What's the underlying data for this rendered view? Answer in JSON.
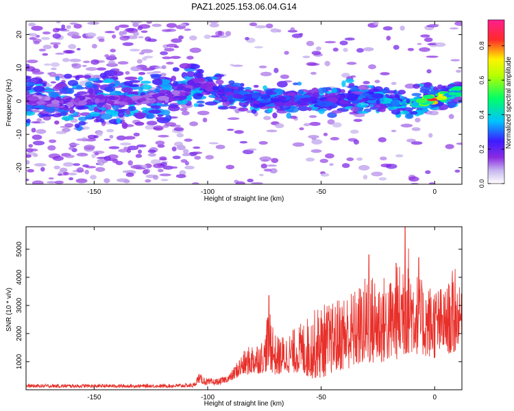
{
  "figure": {
    "title": "PAZ1.2025.153.06.04.G14"
  },
  "colors": {
    "background": "#ffffff",
    "axis": "#000000",
    "snr_line": "#e8302a",
    "colormap": [
      "#ffffff",
      "#c7b6ee",
      "#8a2be2",
      "#3c1cff",
      "#00c3ff",
      "#00ff66",
      "#fff200",
      "#ff2a2a",
      "#ff1f8f"
    ]
  },
  "chart_data": [
    {
      "type": "heatmap",
      "title": "PAZ1.2025.153.06.04.G14",
      "xlabel": "Height of straight line (km)",
      "ylabel": "Frequency (Hz)",
      "xlim": [
        -180,
        12
      ],
      "ylim": [
        -25,
        24
      ],
      "xticks": [
        -150,
        -100,
        -50,
        0
      ],
      "yticks": [
        -20,
        -10,
        0,
        10,
        20
      ],
      "grid": false,
      "colorbar": {
        "label": "Normalized spectral amplitude",
        "range": [
          0,
          0.95
        ],
        "ticks": [
          0.0,
          0.2,
          0.4,
          0.6,
          0.8
        ]
      },
      "ridge": {
        "x": [
          -178,
          -165,
          -150,
          -140,
          -130,
          -120,
          -110,
          -106,
          -100,
          -90,
          -80,
          -70,
          -60,
          -50,
          -40,
          -30,
          -20,
          -15,
          -10,
          -5,
          0,
          5,
          10
        ],
        "freq": [
          0.5,
          -0.5,
          0.8,
          0.3,
          0.5,
          1.0,
          2.0,
          6.0,
          4.5,
          2.0,
          1.0,
          0.0,
          0.5,
          -0.5,
          0.5,
          1.5,
          0.0,
          -1.0,
          -0.5,
          0.0,
          0.8,
          1.5,
          3.0
        ],
        "amplitude": [
          0.15,
          0.2,
          0.18,
          0.2,
          0.2,
          0.18,
          0.2,
          0.2,
          0.25,
          0.3,
          0.32,
          0.32,
          0.3,
          0.28,
          0.28,
          0.32,
          0.4,
          0.45,
          0.45,
          0.55,
          0.9,
          0.6,
          0.5
        ]
      }
    },
    {
      "type": "line",
      "xlabel": "Height of straight line (km)",
      "ylabel": "SNR (10 * v/v)",
      "xlim": [
        -180,
        12
      ],
      "ylim": [
        0,
        5800
      ],
      "xticks": [
        -150,
        -100,
        -50,
        0
      ],
      "yticks": [
        1000,
        2000,
        3000,
        4000,
        5000
      ],
      "grid": false,
      "series": [
        {
          "envelope_x": [
            -180,
            -150,
            -120,
            -106,
            -104,
            -100,
            -95,
            -90,
            -85,
            -80,
            -75,
            -73,
            -70,
            -65,
            -60,
            -55,
            -50,
            -45,
            -40,
            -35,
            -30,
            -25,
            -20,
            -15,
            -13,
            -10,
            -5,
            0,
            5,
            8,
            12
          ],
          "envelope_low": [
            80,
            80,
            80,
            90,
            250,
            150,
            180,
            300,
            500,
            550,
            600,
            700,
            500,
            600,
            600,
            400,
            400,
            600,
            700,
            800,
            900,
            900,
            1000,
            1100,
            1200,
            1300,
            1200,
            1100,
            1400,
            1100,
            2000
          ],
          "envelope_high": [
            200,
            200,
            200,
            240,
            600,
            400,
            400,
            600,
            1300,
            1700,
            1800,
            3350,
            1900,
            2000,
            2300,
            2700,
            3100,
            3100,
            3500,
            3600,
            4100,
            4200,
            4000,
            4600,
            5800,
            4600,
            3800,
            3800,
            3600,
            4300,
            3400
          ],
          "peaks": [
            {
              "x": -73,
              "y": 3350
            },
            {
              "x": -29,
              "y": 4800
            },
            {
              "x": -17,
              "y": 4500
            },
            {
              "x": -13,
              "y": 5800
            },
            {
              "x": -7,
              "y": 4700
            },
            {
              "x": 9,
              "y": 4300
            }
          ]
        }
      ]
    }
  ]
}
